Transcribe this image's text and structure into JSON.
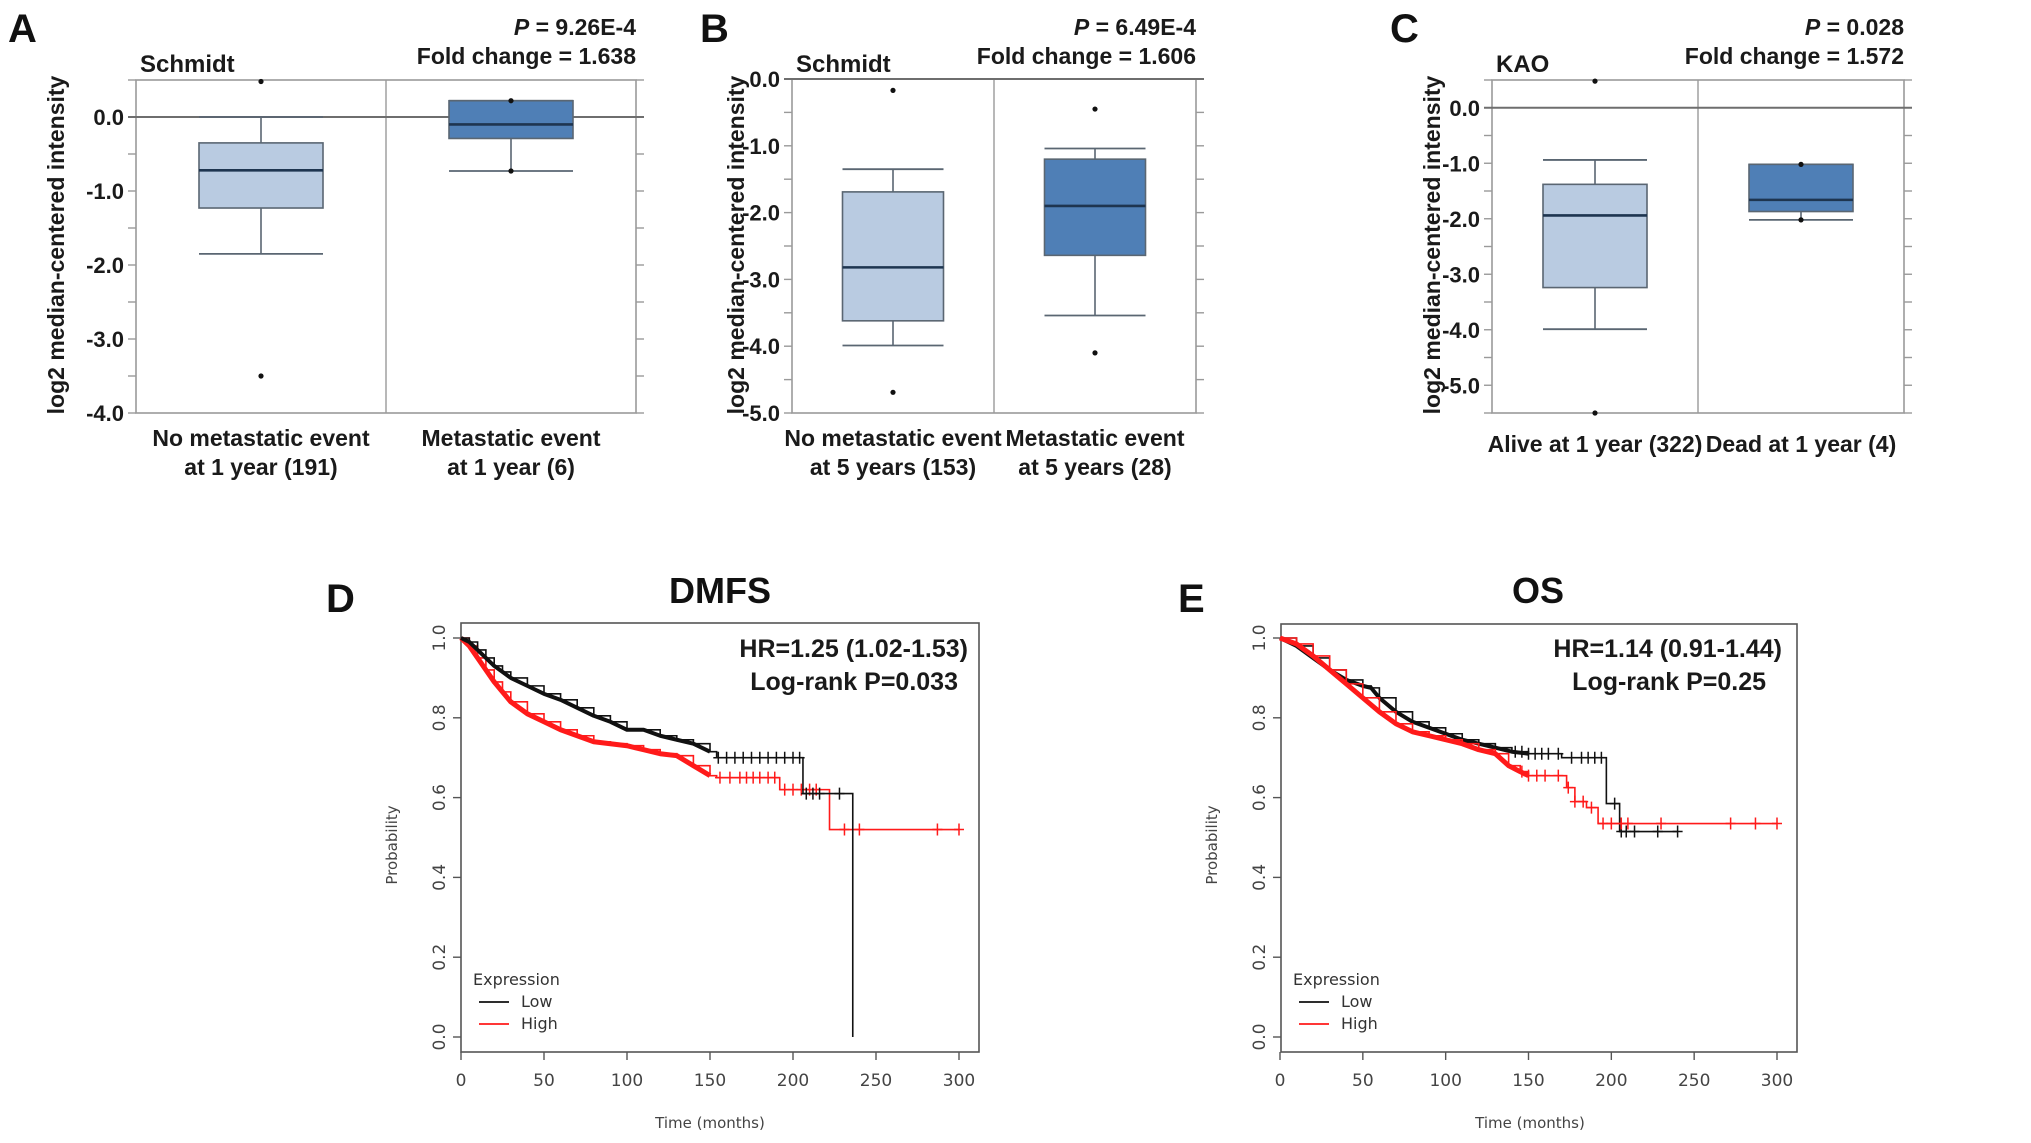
{
  "colors": {
    "box_light": "#b9cbe1",
    "box_dark": "#4f7fb6",
    "box_edge": "#5a6672",
    "median": "#1e3550",
    "km_low": "#111111",
    "km_high": "#ff1a1a"
  },
  "chart_data": [
    {
      "panel": "A",
      "type": "box",
      "dataset": "Schmidt",
      "stat_p_label": "P",
      "stat_p_value": " = 9.26E-4",
      "stat_fold": "Fold change = 1.638",
      "ylabel": "log2 median-centered intensity",
      "ylim": [
        -4.0,
        0.5
      ],
      "yticks": [
        0.0,
        -1.0,
        -2.0,
        -3.0,
        -4.0
      ],
      "ytick_labels": [
        "0.0",
        "-1.0",
        "-2.0",
        "-3.0",
        "-4.0"
      ],
      "reference_line": 0.0,
      "groups": [
        {
          "label_lines": [
            "No metastatic event",
            "at 1 year  (191)"
          ],
          "color": "light",
          "whisker_high": 0.0,
          "q3": -0.35,
          "median": -0.72,
          "q1": -1.23,
          "whisker_low": -1.85,
          "outliers": [
            0.48,
            -3.5
          ]
        },
        {
          "label_lines": [
            "Metastatic event",
            "at 1 year  (6)"
          ],
          "color": "dark",
          "whisker_high": 0.22,
          "q3": 0.22,
          "median": -0.1,
          "q1": -0.29,
          "whisker_low": -0.73,
          "outliers": [
            0.22,
            -0.73
          ]
        }
      ]
    },
    {
      "panel": "B",
      "type": "box",
      "dataset": "Schmidt",
      "stat_p_label": "P",
      "stat_p_value": " = 6.49E-4",
      "stat_fold": "Fold change = 1.606",
      "ylabel": "log2 median-centered intensity",
      "ylim": [
        -5.0,
        0.0
      ],
      "yticks": [
        0.0,
        -1.0,
        -2.0,
        -3.0,
        -4.0,
        -5.0
      ],
      "ytick_labels": [
        "0.0",
        "-1.0",
        "-2.0",
        "-3.0",
        "-4.0",
        "-5.0"
      ],
      "reference_line": 0.0,
      "groups": [
        {
          "label_lines": [
            "No metastatic event",
            "at 5 years (153)"
          ],
          "color": "light",
          "whisker_high": -1.35,
          "q3": -1.69,
          "median": -2.82,
          "q1": -3.62,
          "whisker_low": -3.99,
          "outliers": [
            -0.17,
            -4.69
          ]
        },
        {
          "label_lines": [
            "Metastatic event",
            "at 5 years (28)"
          ],
          "color": "dark",
          "whisker_high": -1.04,
          "q3": -1.2,
          "median": -1.9,
          "q1": -2.64,
          "whisker_low": -3.54,
          "outliers": [
            -0.45,
            -4.1
          ]
        }
      ]
    },
    {
      "panel": "C",
      "type": "box",
      "dataset": "KAO",
      "stat_p_label": "P",
      "stat_p_value": " = 0.028",
      "stat_fold": "Fold change = 1.572",
      "ylabel": "log2 median-centered intensity",
      "ylim": [
        -5.5,
        0.5
      ],
      "yticks": [
        0.0,
        -1.0,
        -2.0,
        -3.0,
        -4.0,
        -5.0
      ],
      "ytick_labels": [
        "0.0",
        "-1.0",
        "-2.0",
        "-3.0",
        "-4.0",
        "-5.0"
      ],
      "reference_line": 0.0,
      "groups": [
        {
          "label_lines": [
            "Alive at 1 year  (322)"
          ],
          "color": "light",
          "whisker_high": -0.94,
          "q3": -1.38,
          "median": -1.94,
          "q1": -3.24,
          "whisker_low": -3.99,
          "outliers": [
            0.48,
            -5.5
          ]
        },
        {
          "label_lines": [
            "Dead at 1 year  (4)"
          ],
          "color": "dark",
          "whisker_high": -1.02,
          "q3": -1.02,
          "median": -1.66,
          "q1": -1.87,
          "whisker_low": -2.02,
          "outliers": [
            -1.02,
            -2.02
          ]
        }
      ]
    },
    {
      "panel": "D",
      "type": "line",
      "subtype": "kaplan-meier",
      "title": "DMFS",
      "hr_text": "HR=1.25 (1.02-1.53)",
      "logrank_text": "Log-rank P=0.033",
      "xlabel": "Time (months)",
      "ylabel": "Probability",
      "xlim": [
        0,
        300
      ],
      "ylim": [
        0,
        1
      ],
      "xticks": [
        0,
        50,
        100,
        150,
        200,
        250,
        300
      ],
      "yticks": [
        0.0,
        0.2,
        0.4,
        0.6,
        0.8,
        1.0
      ],
      "ytick_labels": [
        "0.0",
        "0.2",
        "0.4",
        "0.6",
        "0.8",
        "1.0"
      ],
      "legend_title": "Expression",
      "legend_position": "bottom-left",
      "series": [
        {
          "name": "Low",
          "color": "km_low",
          "x": [
            0,
            5,
            10,
            15,
            20,
            25,
            30,
            40,
            50,
            60,
            70,
            80,
            90,
            100,
            110,
            120,
            130,
            140,
            150,
            154,
            206,
            206,
            236,
            236
          ],
          "y": [
            1.0,
            0.99,
            0.97,
            0.95,
            0.93,
            0.915,
            0.9,
            0.88,
            0.86,
            0.845,
            0.825,
            0.805,
            0.79,
            0.77,
            0.77,
            0.755,
            0.745,
            0.735,
            0.715,
            0.7,
            0.7,
            0.61,
            0.61,
            0.0
          ],
          "censor_x": [
            155,
            160,
            165,
            170,
            175,
            180,
            185,
            190,
            195,
            200,
            204,
            208,
            212,
            216,
            228
          ]
        },
        {
          "name": "High",
          "color": "km_high",
          "x": [
            0,
            5,
            10,
            15,
            20,
            25,
            30,
            40,
            50,
            60,
            70,
            80,
            90,
            100,
            110,
            120,
            130,
            140,
            150,
            154,
            190,
            192,
            222,
            222,
            300
          ],
          "y": [
            1.0,
            0.98,
            0.95,
            0.92,
            0.89,
            0.865,
            0.84,
            0.81,
            0.79,
            0.77,
            0.755,
            0.74,
            0.735,
            0.73,
            0.72,
            0.71,
            0.705,
            0.68,
            0.655,
            0.65,
            0.65,
            0.62,
            0.62,
            0.52,
            0.52
          ],
          "censor_x": [
            156,
            162,
            168,
            172,
            176,
            180,
            185,
            189,
            195,
            200,
            205,
            210,
            214,
            231,
            240,
            287,
            300
          ]
        }
      ]
    },
    {
      "panel": "E",
      "type": "line",
      "subtype": "kaplan-meier",
      "title": "OS",
      "hr_text": "HR=1.14 (0.91-1.44)",
      "logrank_text": "Log-rank P=0.25",
      "xlabel": "Time (months)",
      "ylabel": "Probability",
      "xlim": [
        0,
        300
      ],
      "ylim": [
        0,
        1
      ],
      "xticks": [
        0,
        50,
        100,
        150,
        200,
        250,
        300
      ],
      "yticks": [
        0.0,
        0.2,
        0.4,
        0.6,
        0.8,
        1.0
      ],
      "ytick_labels": [
        "0.0",
        "0.2",
        "0.4",
        "0.6",
        "0.8",
        "1.0"
      ],
      "legend_title": "Expression",
      "legend_position": "bottom-left",
      "series": [
        {
          "name": "Low",
          "color": "km_low",
          "x": [
            0,
            10,
            20,
            30,
            40,
            50,
            55,
            60,
            70,
            80,
            90,
            100,
            110,
            120,
            130,
            140,
            150,
            165,
            170,
            197,
            197,
            205,
            205,
            240
          ],
          "y": [
            1.0,
            0.98,
            0.95,
            0.92,
            0.895,
            0.88,
            0.875,
            0.85,
            0.815,
            0.79,
            0.775,
            0.76,
            0.745,
            0.735,
            0.725,
            0.715,
            0.71,
            0.71,
            0.7,
            0.7,
            0.585,
            0.585,
            0.515,
            0.515
          ],
          "censor_x": [
            142,
            146,
            150,
            154,
            158,
            162,
            168,
            176,
            182,
            186,
            190,
            194,
            202,
            206,
            209,
            214,
            228,
            240
          ]
        },
        {
          "name": "High",
          "color": "km_high",
          "x": [
            0,
            10,
            20,
            30,
            40,
            50,
            60,
            70,
            80,
            90,
            100,
            110,
            120,
            130,
            138,
            145,
            150,
            170,
            173,
            178,
            185,
            190,
            192,
            300
          ],
          "y": [
            1.0,
            0.985,
            0.955,
            0.92,
            0.885,
            0.85,
            0.815,
            0.785,
            0.765,
            0.755,
            0.745,
            0.735,
            0.72,
            0.71,
            0.68,
            0.665,
            0.655,
            0.655,
            0.625,
            0.59,
            0.575,
            0.575,
            0.535,
            0.535
          ],
          "censor_x": [
            146,
            150,
            155,
            160,
            168,
            174,
            178,
            183,
            188,
            195,
            200,
            206,
            210,
            230,
            272,
            287,
            300
          ]
        }
      ]
    }
  ]
}
